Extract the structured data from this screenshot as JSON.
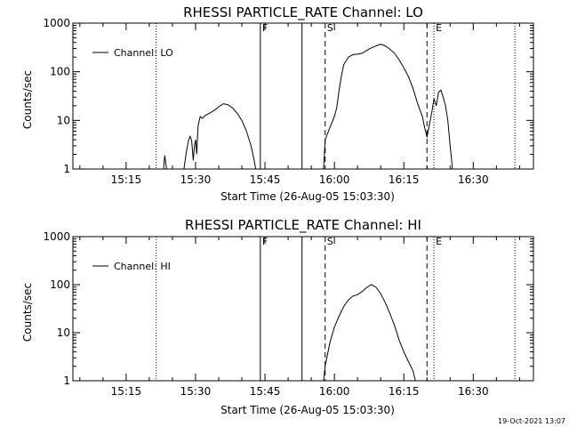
{
  "chart_data": [
    {
      "type": "line",
      "title": "RHESSI PARTICLE_RATE Channel: LO",
      "xlabel": "Start Time (26-Aug-05 15:03:30)",
      "ylabel": "Counts/sec",
      "xlim": [
        "15:03:30",
        "16:43:00"
      ],
      "ylim": [
        1,
        1000
      ],
      "yscale": "log",
      "xticks": [
        "15:15",
        "15:30",
        "15:45",
        "16:00",
        "16:15",
        "16:30"
      ],
      "yticks": [
        "1",
        "10",
        "100",
        "1000"
      ],
      "legend": {
        "placement": "top-left",
        "entries": [
          "Channel: LO"
        ]
      },
      "markers": [
        {
          "label": "F",
          "time": "15:44:00",
          "style": "solid"
        },
        {
          "label": "",
          "time": "15:53:00",
          "style": "solid"
        },
        {
          "label": "S",
          "time": "15:58:00",
          "style": "dashed"
        },
        {
          "label": "",
          "time": "16:20:00",
          "style": "dashed"
        },
        {
          "label": "E",
          "time": "16:21:30",
          "style": "dotted"
        },
        {
          "label": "",
          "time": "15:21:30",
          "style": "dotted"
        },
        {
          "label": "",
          "time": "16:39:00",
          "style": "dotted"
        }
      ],
      "series": [
        {
          "name": "Channel: LO",
          "segments": [
            [
              [
                "15:23:05",
                1.0
              ],
              [
                "15:23:20",
                1.9
              ],
              [
                "15:23:45",
                1.0
              ]
            ],
            [
              [
                "15:27:30",
                1.0
              ],
              [
                "15:28:00",
                2.2
              ],
              [
                "15:28:30",
                4.0
              ],
              [
                "15:28:50",
                4.7
              ],
              [
                "15:29:10",
                3.8
              ],
              [
                "15:29:30",
                1.5
              ],
              [
                "15:29:45",
                3.0
              ],
              [
                "15:30:00",
                4.0
              ],
              [
                "15:30:15",
                2.0
              ],
              [
                "15:30:25",
                4.5
              ],
              [
                "15:30:35",
                8.0
              ],
              [
                "15:30:45",
                9.5
              ],
              [
                "15:31:00",
                12.0
              ],
              [
                "15:31:30",
                11.0
              ],
              [
                "15:32:00",
                12.5
              ],
              [
                "15:33:00",
                14.0
              ],
              [
                "15:34:00",
                16.0
              ],
              [
                "15:35:00",
                19.0
              ],
              [
                "15:36:00",
                22.0
              ],
              [
                "15:37:00",
                21.0
              ],
              [
                "15:38:00",
                18.0
              ],
              [
                "15:39:00",
                14.0
              ],
              [
                "15:40:00",
                10.0
              ],
              [
                "15:41:00",
                6.0
              ],
              [
                "15:42:00",
                3.0
              ],
              [
                "15:42:40",
                1.5
              ],
              [
                "15:43:00",
                1.0
              ]
            ],
            [
              [
                "15:57:40",
                1.0
              ],
              [
                "15:58:00",
                4.0
              ],
              [
                "15:59:00",
                7.0
              ],
              [
                "16:00:00",
                12.0
              ],
              [
                "16:00:30",
                18.0
              ],
              [
                "16:01:00",
                40.0
              ],
              [
                "16:01:30",
                80.0
              ],
              [
                "16:02:00",
                140.0
              ],
              [
                "16:03:00",
                200.0
              ],
              [
                "16:04:00",
                225.0
              ],
              [
                "16:05:00",
                230.0
              ],
              [
                "16:06:00",
                240.0
              ],
              [
                "16:07:00",
                275.0
              ],
              [
                "16:08:00",
                310.0
              ],
              [
                "16:09:00",
                340.0
              ],
              [
                "16:10:00",
                370.0
              ],
              [
                "16:11:00",
                340.0
              ],
              [
                "16:12:00",
                290.0
              ],
              [
                "16:13:00",
                240.0
              ],
              [
                "16:14:00",
                175.0
              ],
              [
                "16:15:00",
                120.0
              ],
              [
                "16:16:00",
                80.0
              ],
              [
                "16:17:00",
                45.0
              ],
              [
                "16:18:00",
                22.0
              ],
              [
                "16:19:00",
                12.0
              ],
              [
                "16:19:30",
                7.0
              ],
              [
                "16:20:00",
                4.5
              ],
              [
                "16:20:30",
                8.0
              ],
              [
                "16:21:00",
                14.0
              ],
              [
                "16:21:30",
                28.0
              ],
              [
                "16:22:00",
                20.0
              ],
              [
                "16:22:30",
                38.0
              ],
              [
                "16:23:00",
                42.0
              ],
              [
                "16:23:30",
                30.0
              ],
              [
                "16:24:00",
                20.0
              ],
              [
                "16:24:30",
                10.0
              ],
              [
                "16:25:00",
                3.0
              ],
              [
                "16:25:30",
                1.0
              ]
            ]
          ]
        }
      ]
    },
    {
      "type": "line",
      "title": "RHESSI PARTICLE_RATE Channel: HI",
      "xlabel": "Start Time (26-Aug-05 15:03:30)",
      "ylabel": "Counts/sec",
      "xlim": [
        "15:03:30",
        "16:43:00"
      ],
      "ylim": [
        1,
        1000
      ],
      "yscale": "log",
      "xticks": [
        "15:15",
        "15:30",
        "15:45",
        "16:00",
        "16:15",
        "16:30"
      ],
      "yticks": [
        "1",
        "10",
        "100",
        "1000"
      ],
      "legend": {
        "placement": "top-left",
        "entries": [
          "Channel: HI"
        ]
      },
      "markers": [
        {
          "label": "F",
          "time": "15:44:00",
          "style": "solid"
        },
        {
          "label": "",
          "time": "15:53:00",
          "style": "solid"
        },
        {
          "label": "S",
          "time": "15:58:00",
          "style": "dashed"
        },
        {
          "label": "",
          "time": "16:20:00",
          "style": "dashed"
        },
        {
          "label": "E",
          "time": "16:21:30",
          "style": "dotted"
        },
        {
          "label": "",
          "time": "15:21:30",
          "style": "dotted"
        },
        {
          "label": "",
          "time": "16:39:00",
          "style": "dotted"
        }
      ],
      "series": [
        {
          "name": "Channel: HI",
          "segments": [
            [
              [
                "15:57:40",
                1.0
              ],
              [
                "15:58:00",
                2.0
              ],
              [
                "15:58:30",
                3.5
              ],
              [
                "15:59:00",
                6.0
              ],
              [
                "15:59:30",
                9.0
              ],
              [
                "16:00:00",
                13.0
              ],
              [
                "16:01:00",
                22.0
              ],
              [
                "16:02:00",
                35.0
              ],
              [
                "16:03:00",
                48.0
              ],
              [
                "16:04:00",
                58.0
              ],
              [
                "16:05:00",
                62.0
              ],
              [
                "16:06:00",
                72.0
              ],
              [
                "16:07:00",
                88.0
              ],
              [
                "16:08:00",
                100.0
              ],
              [
                "16:09:00",
                88.0
              ],
              [
                "16:10:00",
                65.0
              ],
              [
                "16:11:00",
                42.0
              ],
              [
                "16:12:00",
                25.0
              ],
              [
                "16:13:00",
                14.0
              ],
              [
                "16:14:00",
                7.0
              ],
              [
                "16:15:00",
                4.0
              ],
              [
                "16:16:00",
                2.5
              ],
              [
                "16:17:00",
                1.6
              ],
              [
                "16:17:30",
                1.0
              ]
            ]
          ]
        }
      ]
    }
  ],
  "timestamp": "19-Oct-2021 13:07"
}
